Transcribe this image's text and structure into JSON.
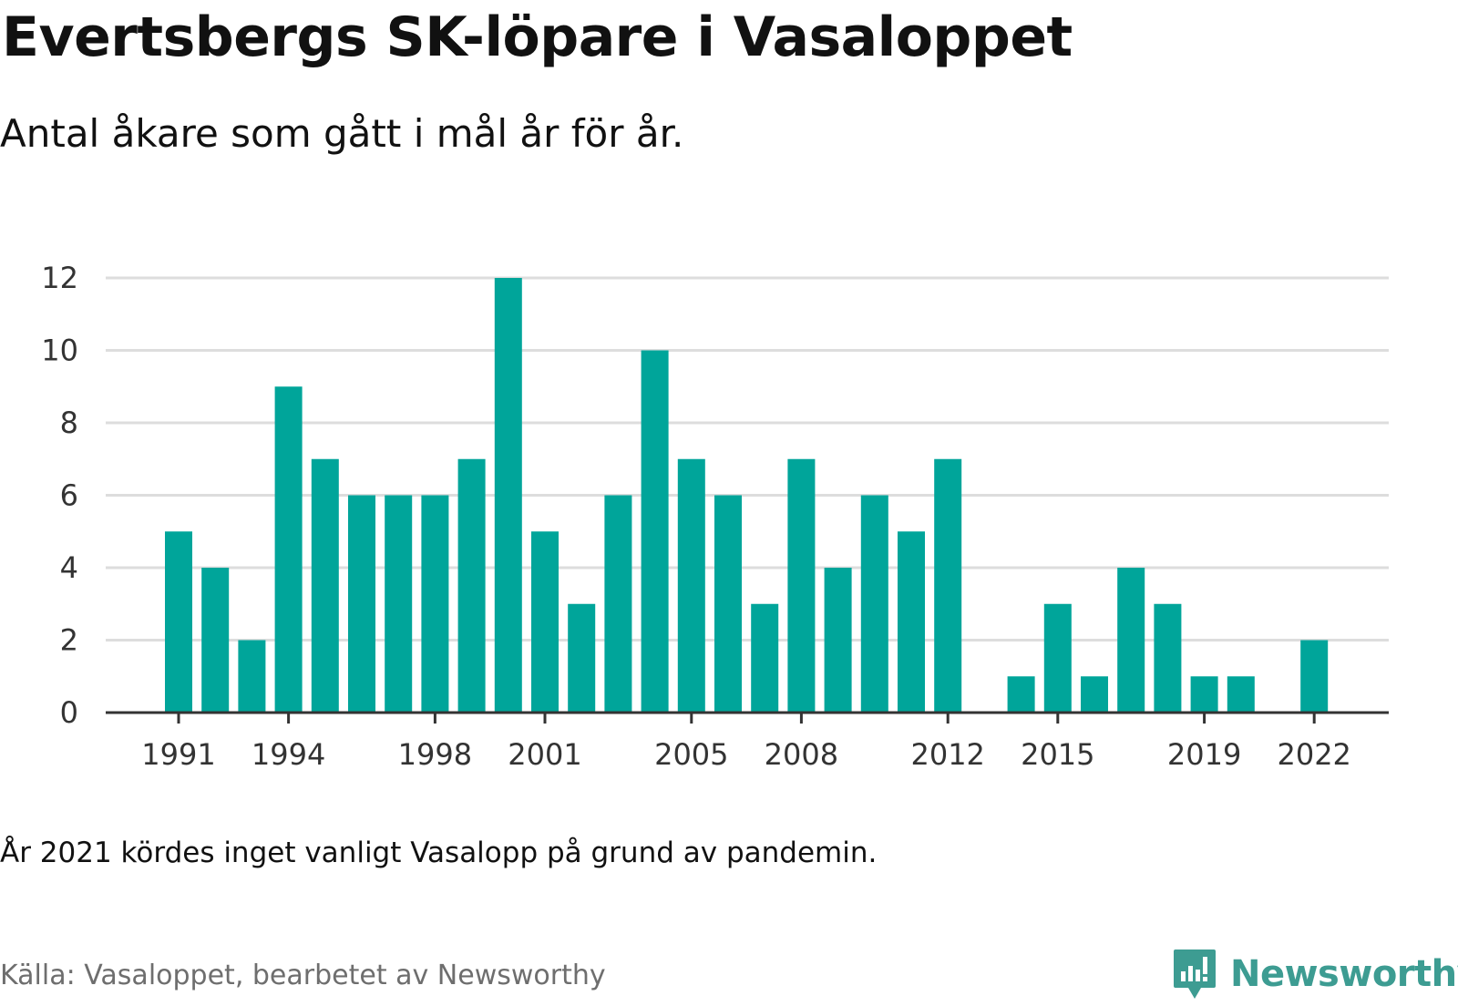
{
  "title": "Evertsbergs SK-löpare i Vasaloppet",
  "subtitle": "Antal åkare som gått i mål år för år.",
  "note": "År 2021 kördes inget vanligt Vasalopp på grund av pandemin.",
  "source": "Källa: Vasaloppet, bearbetet av Newsworthy",
  "brand": "Newsworthy",
  "colors": {
    "bar": "#00a59a",
    "grid": "#dddddd",
    "axis": "#333333",
    "brand": "#3d9c92"
  },
  "chart_data": {
    "type": "bar",
    "categories": [
      "1991",
      "1992",
      "1993",
      "1994",
      "1995",
      "1996",
      "1997",
      "1998",
      "1999",
      "2000",
      "2001",
      "2002",
      "2003",
      "2004",
      "2005",
      "2006",
      "2007",
      "2008",
      "2009",
      "2010",
      "2011",
      "2012",
      "2013",
      "2014",
      "2015",
      "2016",
      "2017",
      "2018",
      "2019",
      "2020",
      "2021",
      "2022"
    ],
    "values": [
      5,
      4,
      2,
      9,
      7,
      6,
      6,
      6,
      7,
      12,
      5,
      3,
      6,
      10,
      7,
      6,
      3,
      7,
      4,
      6,
      5,
      7,
      0,
      1,
      3,
      1,
      4,
      3,
      1,
      1,
      0,
      2
    ],
    "x_tick_labels": [
      "1991",
      "1994",
      "1998",
      "2001",
      "2005",
      "2008",
      "2012",
      "2015",
      "2019",
      "2022"
    ],
    "y_ticks": [
      0,
      2,
      4,
      6,
      8,
      10,
      12
    ],
    "ylim": [
      0,
      12
    ],
    "xlabel": "",
    "ylabel": "",
    "grid": true
  }
}
